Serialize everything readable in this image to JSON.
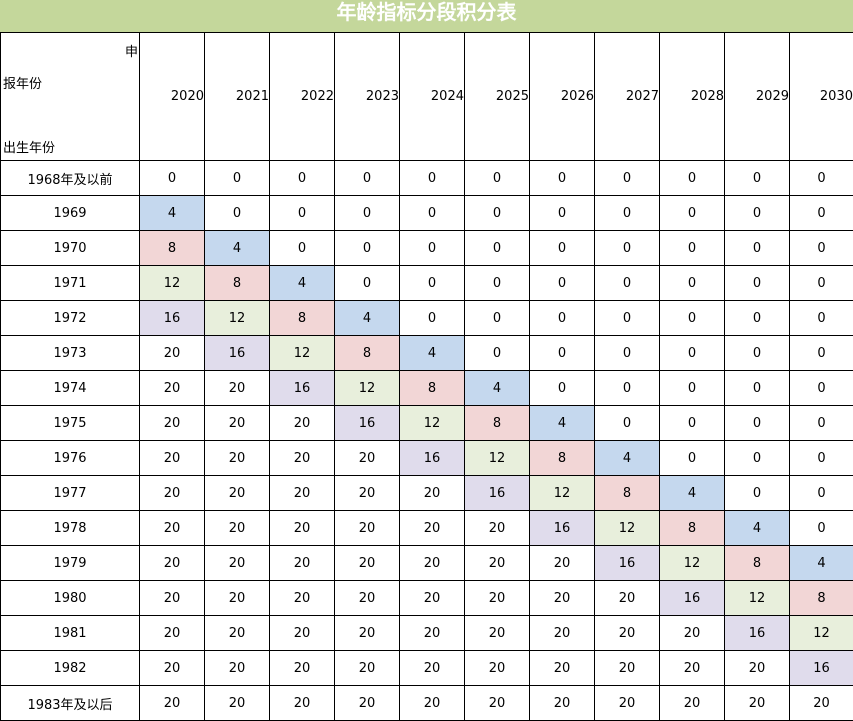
{
  "title": "年龄指标分段积分表",
  "corner": {
    "top_right": "申",
    "middle": "报年份",
    "bottom": "出生年份"
  },
  "years": [
    "2020",
    "2021",
    "2022",
    "2023",
    "2024",
    "2025",
    "2026",
    "2027",
    "2028",
    "2029",
    "2030"
  ],
  "rows": [
    {
      "label": "1968年及以前",
      "values": [
        0,
        0,
        0,
        0,
        0,
        0,
        0,
        0,
        0,
        0,
        0
      ]
    },
    {
      "label": "1969",
      "values": [
        4,
        0,
        0,
        0,
        0,
        0,
        0,
        0,
        0,
        0,
        0
      ]
    },
    {
      "label": "1970",
      "values": [
        8,
        4,
        0,
        0,
        0,
        0,
        0,
        0,
        0,
        0,
        0
      ]
    },
    {
      "label": "1971",
      "values": [
        12,
        8,
        4,
        0,
        0,
        0,
        0,
        0,
        0,
        0,
        0
      ]
    },
    {
      "label": "1972",
      "values": [
        16,
        12,
        8,
        4,
        0,
        0,
        0,
        0,
        0,
        0,
        0
      ]
    },
    {
      "label": "1973",
      "values": [
        20,
        16,
        12,
        8,
        4,
        0,
        0,
        0,
        0,
        0,
        0
      ]
    },
    {
      "label": "1974",
      "values": [
        20,
        20,
        16,
        12,
        8,
        4,
        0,
        0,
        0,
        0,
        0
      ]
    },
    {
      "label": "1975",
      "values": [
        20,
        20,
        20,
        16,
        12,
        8,
        4,
        0,
        0,
        0,
        0
      ]
    },
    {
      "label": "1976",
      "values": [
        20,
        20,
        20,
        20,
        16,
        12,
        8,
        4,
        0,
        0,
        0
      ]
    },
    {
      "label": "1977",
      "values": [
        20,
        20,
        20,
        20,
        20,
        16,
        12,
        8,
        4,
        0,
        0
      ]
    },
    {
      "label": "1978",
      "values": [
        20,
        20,
        20,
        20,
        20,
        20,
        16,
        12,
        8,
        4,
        0
      ]
    },
    {
      "label": "1979",
      "values": [
        20,
        20,
        20,
        20,
        20,
        20,
        20,
        16,
        12,
        8,
        4
      ]
    },
    {
      "label": "1980",
      "values": [
        20,
        20,
        20,
        20,
        20,
        20,
        20,
        20,
        16,
        12,
        8
      ]
    },
    {
      "label": "1981",
      "values": [
        20,
        20,
        20,
        20,
        20,
        20,
        20,
        20,
        20,
        16,
        12
      ]
    },
    {
      "label": "1982",
      "values": [
        20,
        20,
        20,
        20,
        20,
        20,
        20,
        20,
        20,
        20,
        16
      ]
    },
    {
      "label": "1983年及以后",
      "values": [
        20,
        20,
        20,
        20,
        20,
        20,
        20,
        20,
        20,
        20,
        20
      ]
    }
  ],
  "colors": {
    "title_bar": "#c4d79b",
    "value_4": "#c5d8ee",
    "value_8": "#f2d6d6",
    "value_12": "#e8efdc",
    "value_16": "#e0dcec"
  }
}
